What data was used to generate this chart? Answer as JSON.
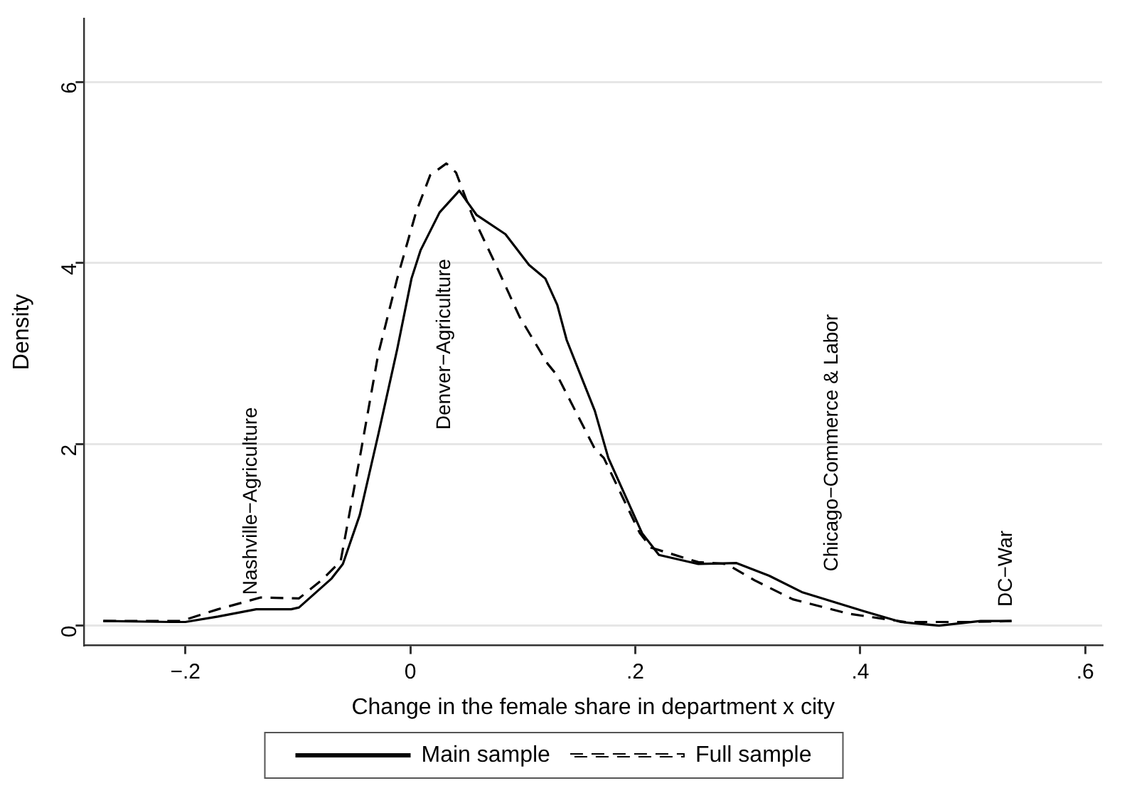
{
  "chart_data": {
    "type": "line",
    "xlabel": "Change in the female share in department x city",
    "ylabel": "Density",
    "xlim": [
      -0.29,
      0.615
    ],
    "ylim": [
      -0.22,
      6.7
    ],
    "xticks": [
      {
        "value": -0.2,
        "label": "−.2"
      },
      0,
      {
        "value": 0.2,
        "label": ".2"
      },
      {
        "value": 0.4,
        "label": ".4"
      },
      {
        "value": 0.6,
        "label": ".6"
      }
    ],
    "yticks": [
      0,
      2,
      4,
      6
    ],
    "grid": "y",
    "legend": "bottom",
    "marker": "none",
    "series": [
      {
        "name": "Main sample",
        "color": "#000000",
        "line_style": "solid",
        "x": [
          -0.273,
          -0.213,
          -0.2,
          -0.171,
          -0.137,
          -0.106,
          -0.099,
          -0.07,
          -0.06,
          -0.045,
          -0.0285,
          -0.0117,
          0.001,
          0.009,
          0.026,
          0.0435,
          0.059,
          0.0845,
          0.1055,
          0.12,
          0.1306,
          0.139,
          0.164,
          0.176,
          0.206,
          0.221,
          0.256,
          0.29,
          0.319,
          0.348,
          0.403,
          0.436,
          0.47,
          0.507,
          0.5345
        ],
        "values": [
          0.05,
          0.04,
          0.04,
          0.1,
          0.18,
          0.18,
          0.2,
          0.52,
          0.68,
          1.22,
          2.11,
          3.05,
          3.83,
          4.14,
          4.56,
          4.8,
          4.53,
          4.32,
          3.98,
          3.83,
          3.54,
          3.15,
          2.37,
          1.85,
          1.02,
          0.78,
          0.68,
          0.69,
          0.55,
          0.37,
          0.16,
          0.04,
          0.0,
          0.05,
          0.05
        ]
      },
      {
        "name": "Full sample",
        "color": "#000000",
        "line_style": "dashed",
        "x": [
          -0.273,
          -0.204,
          -0.171,
          -0.133,
          -0.099,
          -0.079,
          -0.062,
          -0.045,
          -0.0285,
          -0.0117,
          0.005,
          0.0176,
          0.032,
          0.0406,
          0.055,
          0.076,
          0.097,
          0.122,
          0.1306,
          0.164,
          0.172,
          0.204,
          0.214,
          0.256,
          0.281,
          0.306,
          0.34,
          0.39,
          0.44,
          0.499,
          0.5345
        ],
        "values": [
          0.05,
          0.05,
          0.18,
          0.31,
          0.3,
          0.5,
          0.71,
          1.85,
          3.0,
          3.83,
          4.56,
          4.97,
          5.1,
          5.0,
          4.53,
          3.98,
          3.41,
          2.89,
          2.76,
          1.95,
          1.85,
          1.02,
          0.86,
          0.7,
          0.68,
          0.5,
          0.29,
          0.13,
          0.04,
          0.04,
          0.05
        ]
      }
    ],
    "annotations": [
      "Nashville−Agriculture",
      "Denver−Agriculture",
      "Chicago−Commerce & Labor",
      "DC−War"
    ]
  }
}
